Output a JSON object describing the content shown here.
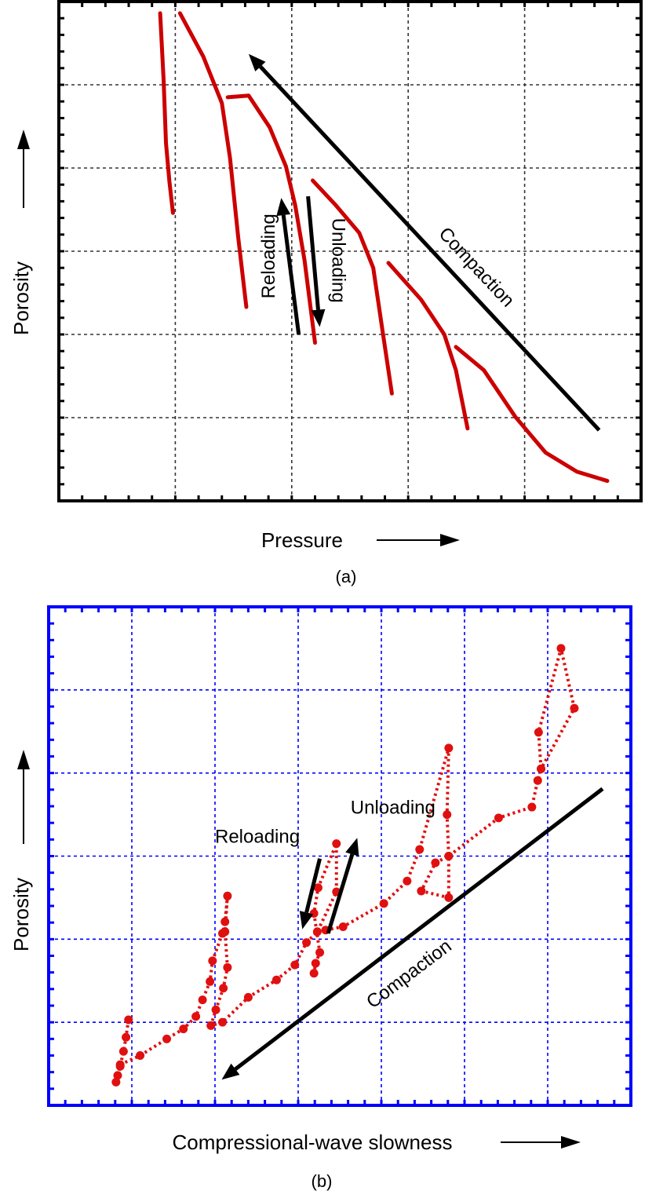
{
  "colors": {
    "panel_a_axes": "#000000",
    "panel_b_axes": "#0000ff",
    "data": "#cc0000",
    "data_b": "#e01010",
    "arrows": "#000000"
  },
  "chart_data": [
    {
      "type": "line",
      "caption": "(a)",
      "xlabel": "Pressure",
      "ylabel": "Porosity",
      "xlim": [
        0,
        5
      ],
      "ylim": [
        0,
        6
      ],
      "grid": true,
      "series": [
        {
          "x": [
            0.87,
            0.9,
            0.92,
            0.95,
            0.98
          ],
          "y": [
            5.86,
            5.05,
            4.3,
            3.83,
            3.46
          ]
        },
        {
          "x": [
            1.04,
            1.24,
            1.4,
            1.47,
            1.54,
            1.61
          ],
          "y": [
            5.86,
            5.34,
            4.78,
            4.12,
            3.17,
            2.33
          ]
        },
        {
          "x": [
            1.45,
            1.63,
            1.81,
            1.95,
            2.03,
            2.11,
            2.2
          ],
          "y": [
            4.85,
            4.87,
            4.49,
            4.02,
            3.55,
            2.89,
            1.9
          ]
        },
        {
          "x": [
            2.18,
            2.38,
            2.58,
            2.7,
            2.78,
            2.86
          ],
          "y": [
            3.85,
            3.55,
            3.22,
            2.8,
            2.04,
            1.29
          ]
        },
        {
          "x": [
            2.83,
            3.11,
            3.31,
            3.41,
            3.51
          ],
          "y": [
            2.86,
            2.42,
            2.0,
            1.57,
            0.87
          ]
        },
        {
          "x": [
            3.41,
            3.65,
            3.92,
            4.18,
            4.45,
            4.71
          ],
          "y": [
            1.85,
            1.57,
            1.01,
            0.58,
            0.35,
            0.24
          ]
        }
      ],
      "annotations": [
        {
          "text": "Compaction",
          "from": [
            4.64,
            0.85
          ],
          "to": [
            1.63,
            5.37
          ],
          "label_at": [
            3.58,
            2.8
          ],
          "rotation": 47
        },
        {
          "text": "Reloading",
          "from": [
            2.06,
            2.0
          ],
          "to": [
            1.91,
            3.64
          ],
          "label_at": [
            1.81,
            2.94
          ],
          "rotation": -90
        },
        {
          "text": "Unloading",
          "from": [
            2.14,
            3.66
          ],
          "to": [
            2.24,
            2.09
          ],
          "label_at": [
            2.39,
            2.89
          ],
          "rotation": 90
        }
      ]
    },
    {
      "type": "line",
      "caption": "(b)",
      "xlabel": "Compressional-wave slowness",
      "ylabel": "Porosity",
      "xlim": [
        0,
        7
      ],
      "ylim": [
        0,
        6
      ],
      "grid": true,
      "series": [
        {
          "x": [
            0.96,
            0.93,
            0.9,
            0.86,
            0.83,
            0.81
          ],
          "y": [
            1.03,
            0.82,
            0.65,
            0.47,
            0.36,
            0.28
          ]
        },
        {
          "x": [
            0.86,
            1.1,
            1.42,
            1.62,
            1.77,
            1.85,
            1.94,
            1.97,
            2.09,
            2.12,
            2.15,
            2.12,
            2.15,
            2.1,
            2.01,
            1.95,
            2.09,
            2.4,
            2.74,
            2.96,
            3.1,
            3.23,
            3.46,
            3.46,
            3.24,
            3.19,
            3.26,
            3.21,
            3.19
          ],
          "y": [
            0.49,
            0.6,
            0.8,
            0.92,
            1.07,
            1.27,
            1.49,
            1.74,
            2.07,
            2.21,
            2.52,
            2.09,
            1.66,
            1.41,
            1.15,
            0.96,
            1.0,
            1.3,
            1.51,
            1.69,
            1.96,
            2.09,
            2.57,
            3.15,
            2.62,
            2.31,
            1.84,
            1.71,
            1.59
          ]
        },
        {
          "x": [
            3.33,
            3.54,
            4.03,
            4.31,
            4.46,
            4.81,
            4.79,
            4.81,
            4.65,
            4.48,
            4.81,
            4.81,
            5.41,
            5.81,
            5.88,
            5.92,
            5.89,
            6.16,
            6.32,
            5.92
          ],
          "y": [
            2.11,
            2.15,
            2.43,
            2.7,
            3.08,
            4.3,
            3.5,
            3.0,
            2.92,
            2.58,
            2.5,
            3.0,
            3.46,
            3.59,
            3.91,
            4.05,
            4.49,
            5.5,
            4.78,
            4.05
          ]
        }
      ],
      "annotations": [
        {
          "text": "Compaction",
          "from": [
            6.66,
            3.81
          ],
          "to": [
            2.08,
            0.31
          ],
          "label_at": [
            4.34,
            1.57
          ],
          "rotation": -37
        },
        {
          "text": "Reloading",
          "from": [
            3.26,
            2.97
          ],
          "to": [
            3.05,
            2.12
          ],
          "label_at": [
            2.51,
            3.22
          ],
          "rotation": 0
        },
        {
          "text": "Unloading",
          "from": [
            3.36,
            2.07
          ],
          "to": [
            3.71,
            3.22
          ],
          "label_at": [
            4.14,
            3.57
          ],
          "rotation": 0
        }
      ]
    }
  ]
}
